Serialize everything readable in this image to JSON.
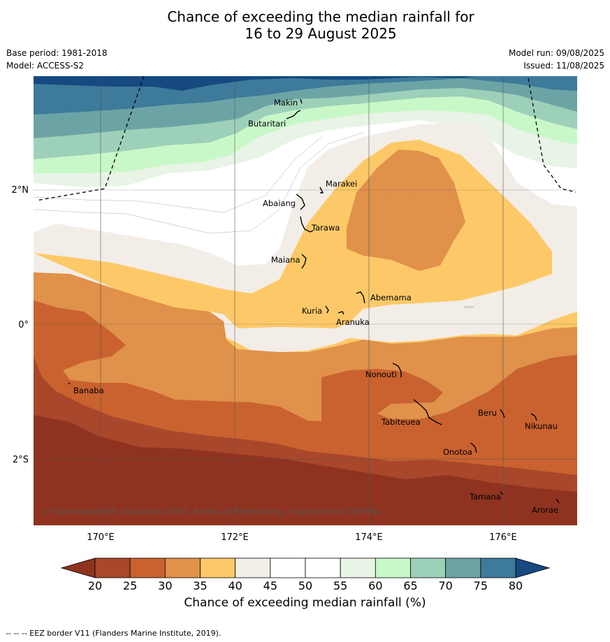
{
  "title": {
    "line1": "Chance of exceeding the median rainfall for",
    "line2": "16 to 29 August 2025"
  },
  "meta": {
    "base_period": "Base period: 1981-2018",
    "model": "Model: ACCESS-S2",
    "model_run": "Model run: 09/08/2025",
    "issued": "Issued: 11/08/2025"
  },
  "map": {
    "lon_ticks": [
      "170°E",
      "172°E",
      "174°E",
      "176°E"
    ],
    "lat_ticks": [
      "2°N",
      "0°",
      "2°S"
    ],
    "copyright": "© Commonwealth of Australia 2025, Bureau of Meteorology, supported by COSPPac",
    "places": [
      "Makin",
      "Butaritari",
      "Marakei",
      "Abaiang",
      "Tarawa",
      "Maiana",
      "Abemama",
      "Kuria",
      "Aranuka",
      "Banaba",
      "Nonouti",
      "Tabiteuea",
      "Beru",
      "Nikunau",
      "Onotoa",
      "Tamana",
      "Arorae"
    ]
  },
  "colorbar": {
    "ticks": [
      "20",
      "25",
      "30",
      "35",
      "40",
      "45",
      "50",
      "55",
      "60",
      "65",
      "70",
      "75",
      "80"
    ],
    "label": "Chance of exceeding median rainfall (%)",
    "colors": [
      "#a9472b",
      "#c9622f",
      "#e0914a",
      "#fdc968",
      "#f2ede7",
      "#ffffff",
      "#ffffff",
      "#e8f4e6",
      "#c9f8c8",
      "#9dd0b8",
      "#6ca4a6",
      "#3e7a9a"
    ],
    "under_color": "#8f3320",
    "over_color": "#164a80"
  },
  "footnote": "-- -- -- EEZ border V11 (Flanders Marine Institute, 2019)."
}
